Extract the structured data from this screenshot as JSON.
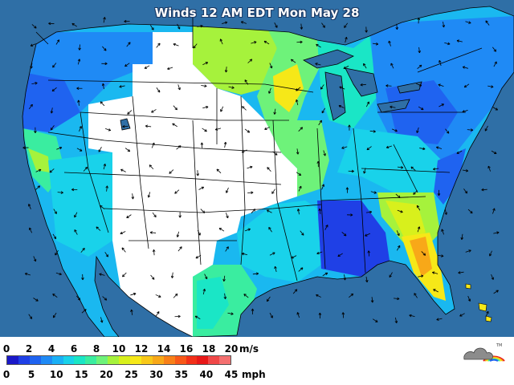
{
  "title": "Winds 12 AM EDT Mon May 28",
  "legend": {
    "ms_unit": "m/s",
    "mph_unit": "mph",
    "ms_ticks": [
      "0",
      "2",
      "4",
      "6",
      "8",
      "10",
      "12",
      "14",
      "16",
      "18",
      "20"
    ],
    "mph_ticks": [
      "0",
      "5",
      "10",
      "15",
      "20",
      "25",
      "30",
      "35",
      "40",
      "45"
    ],
    "colors": [
      "#1a18c8",
      "#1f40e6",
      "#1f63f0",
      "#1f8af5",
      "#1ab0f5",
      "#19d2ea",
      "#1ae6c6",
      "#3aeda0",
      "#6ef27a",
      "#a6f23c",
      "#d8f01c",
      "#f6e818",
      "#f8c818",
      "#f8a818",
      "#f88018",
      "#f85818",
      "#f23018",
      "#e81818",
      "#f04848",
      "#f47070"
    ]
  },
  "colors": {
    "water": "#2f6fa6",
    "land_no_data": "#ffffff",
    "boundary": "#000000",
    "arrow": "#000000"
  },
  "logo_icon": "cloud-rainbow-logo"
}
